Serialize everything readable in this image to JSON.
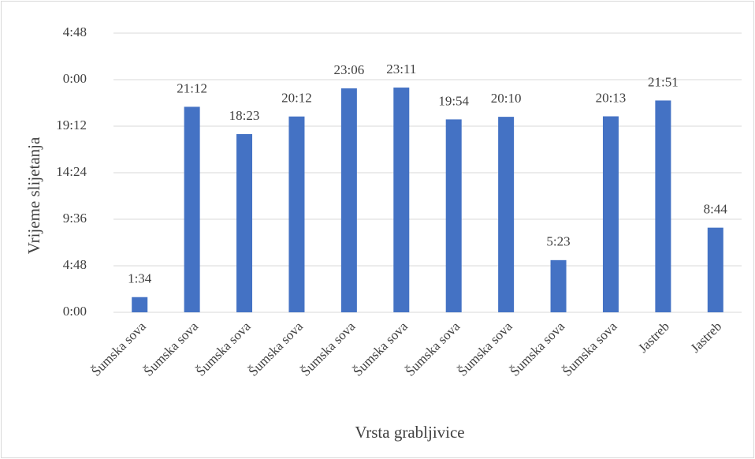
{
  "chart_data": {
    "type": "bar",
    "x_label": "Vrsta grabljivice",
    "y_label": "Vrijeme slijetanja",
    "categories": [
      "Šumska sova",
      "Šumska sova",
      "Šumska sova",
      "Šumska sova",
      "Šumska sova",
      "Šumska sova",
      "Šumska sova",
      "Šumska sova",
      "Šumska sova",
      "Šumska sova",
      "Jastreb",
      "Jastreb"
    ],
    "values": [
      94,
      1272,
      1103,
      1212,
      1386,
      1391,
      1194,
      1210,
      323,
      1213,
      1311,
      524
    ],
    "value_labels": [
      "1:34",
      "21:12",
      "18:23",
      "20:12",
      "23:06",
      "23:11",
      "19:54",
      "20:10",
      "5:23",
      "20:13",
      "21:51",
      "8:44"
    ],
    "color": "#4472c4",
    "ylim": [
      0,
      1728
    ],
    "yticks": [
      {
        "value": 0,
        "label": "0:00"
      },
      {
        "value": 288,
        "label": "4:48"
      },
      {
        "value": 576,
        "label": "9:36"
      },
      {
        "value": 864,
        "label": "14:24"
      },
      {
        "value": 1152,
        "label": "19:12"
      },
      {
        "value": 1440,
        "label": "0:00"
      },
      {
        "value": 1728,
        "label": "4:48"
      }
    ],
    "grid": true
  }
}
